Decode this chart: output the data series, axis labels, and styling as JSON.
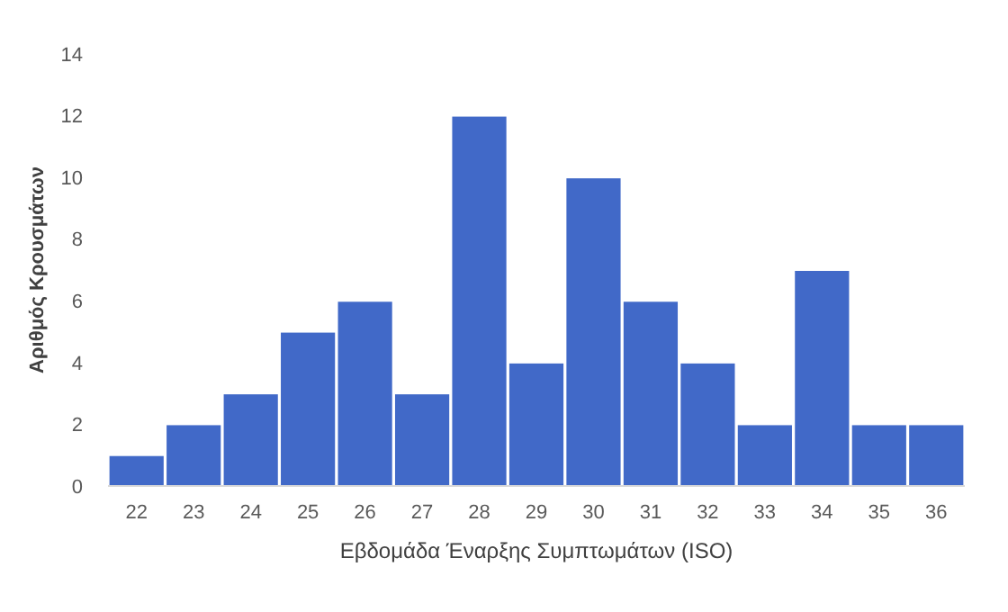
{
  "chart_data": {
    "type": "bar",
    "xlabel": "Εβδομάδα Έναρξης Συμπτωμάτων (ISO)",
    "ylabel": "Αριθμός Κρουσμάτων",
    "categories": [
      "22",
      "23",
      "24",
      "25",
      "26",
      "27",
      "28",
      "29",
      "30",
      "31",
      "32",
      "33",
      "34",
      "35",
      "36"
    ],
    "values": [
      1,
      2,
      3,
      5,
      6,
      3,
      12,
      4,
      10,
      6,
      4,
      2,
      7,
      2,
      2
    ],
    "color": "#4169c8",
    "ylim": [
      0,
      14
    ],
    "yticks": [
      0,
      2,
      4,
      6,
      8,
      10,
      12,
      14
    ],
    "grid": false
  }
}
